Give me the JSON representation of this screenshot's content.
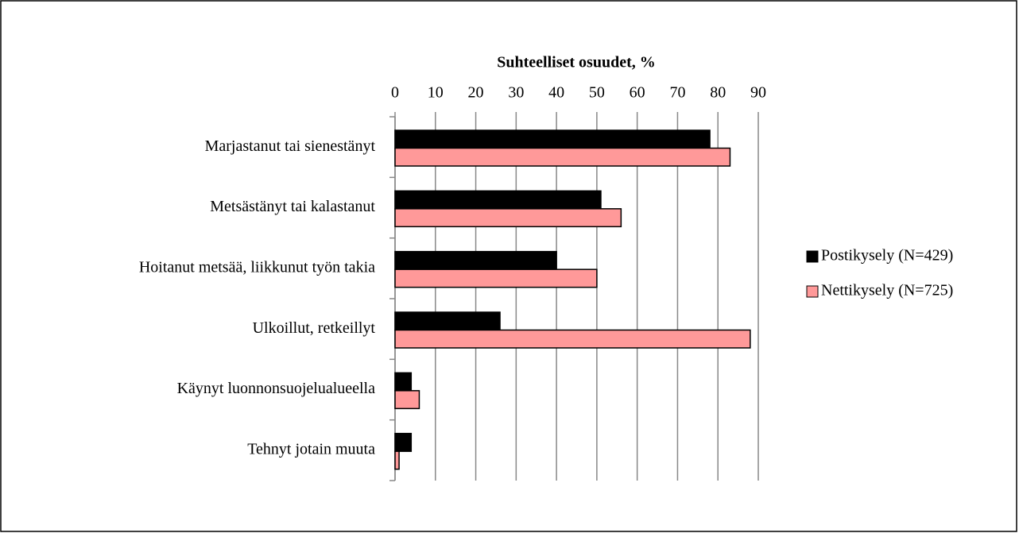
{
  "chart_data": {
    "type": "hbar",
    "title": "Suhteelliset osuudet, %",
    "categories": [
      "Marjastanut tai sienestänyt",
      "Metsästänyt tai kalastanut",
      "Hoitanut metsää, liikkunut työn takia",
      "Ulkoillut, retkeillyt",
      "Käynyt luonnonsuojelualueella",
      "Tehnyt jotain muuta"
    ],
    "series": [
      {
        "name": "Postikysely (N=429)",
        "color": "#000000",
        "values": [
          78,
          51,
          40,
          26,
          4,
          4
        ]
      },
      {
        "name": "Nettikysely (N=725)",
        "color": "#ff9999",
        "values": [
          83,
          56,
          50,
          88,
          6,
          1
        ]
      }
    ],
    "xlim": [
      0,
      90
    ],
    "xticks": [
      0,
      10,
      20,
      30,
      40,
      50,
      60,
      70,
      80,
      90
    ],
    "grid": true,
    "legend": "right"
  }
}
